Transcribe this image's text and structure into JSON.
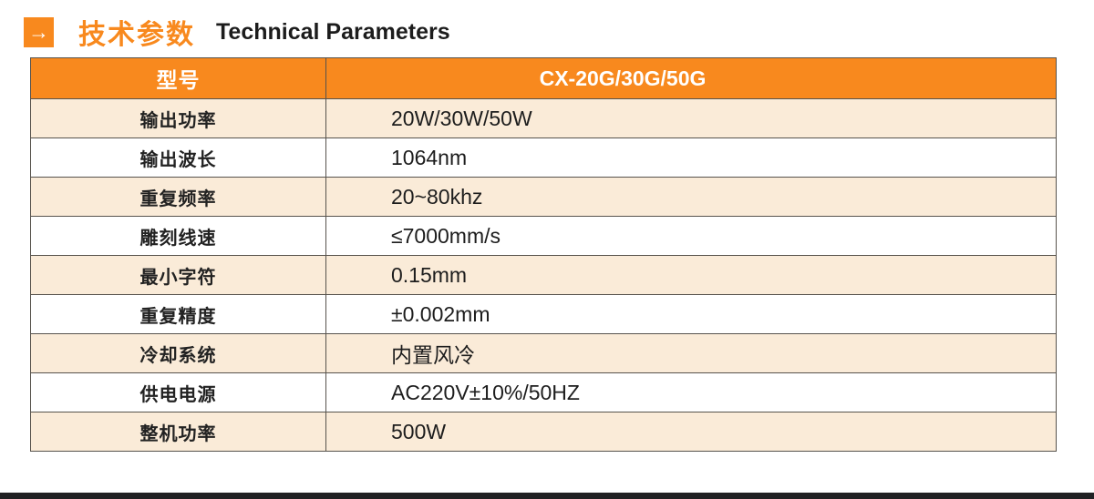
{
  "title": {
    "arrow_glyph": "→",
    "zh": "技术参数",
    "en": "Technical Parameters"
  },
  "colors": {
    "accent_orange": "#F8891E",
    "row_alt_cream": "#FAEBD8",
    "grid_border": "#57534D",
    "footer_bar": "#202023"
  },
  "table": {
    "header": {
      "label": "型号",
      "value": "CX-20G/30G/50G"
    },
    "rows": [
      {
        "label": "输出功率",
        "value": "20W/30W/50W"
      },
      {
        "label": "输出波长",
        "value": "1064nm"
      },
      {
        "label": "重复频率",
        "value": "20~80khz"
      },
      {
        "label": "雕刻线速",
        "value": "≤7000mm/s"
      },
      {
        "label": "最小字符",
        "value": "0.15mm"
      },
      {
        "label": "重复精度",
        "value": "±0.002mm"
      },
      {
        "label": "冷却系统",
        "value": "内置风冷"
      },
      {
        "label": "供电电源",
        "value": "AC220V±10%/50HZ"
      },
      {
        "label": "整机功率",
        "value": "500W"
      }
    ]
  }
}
